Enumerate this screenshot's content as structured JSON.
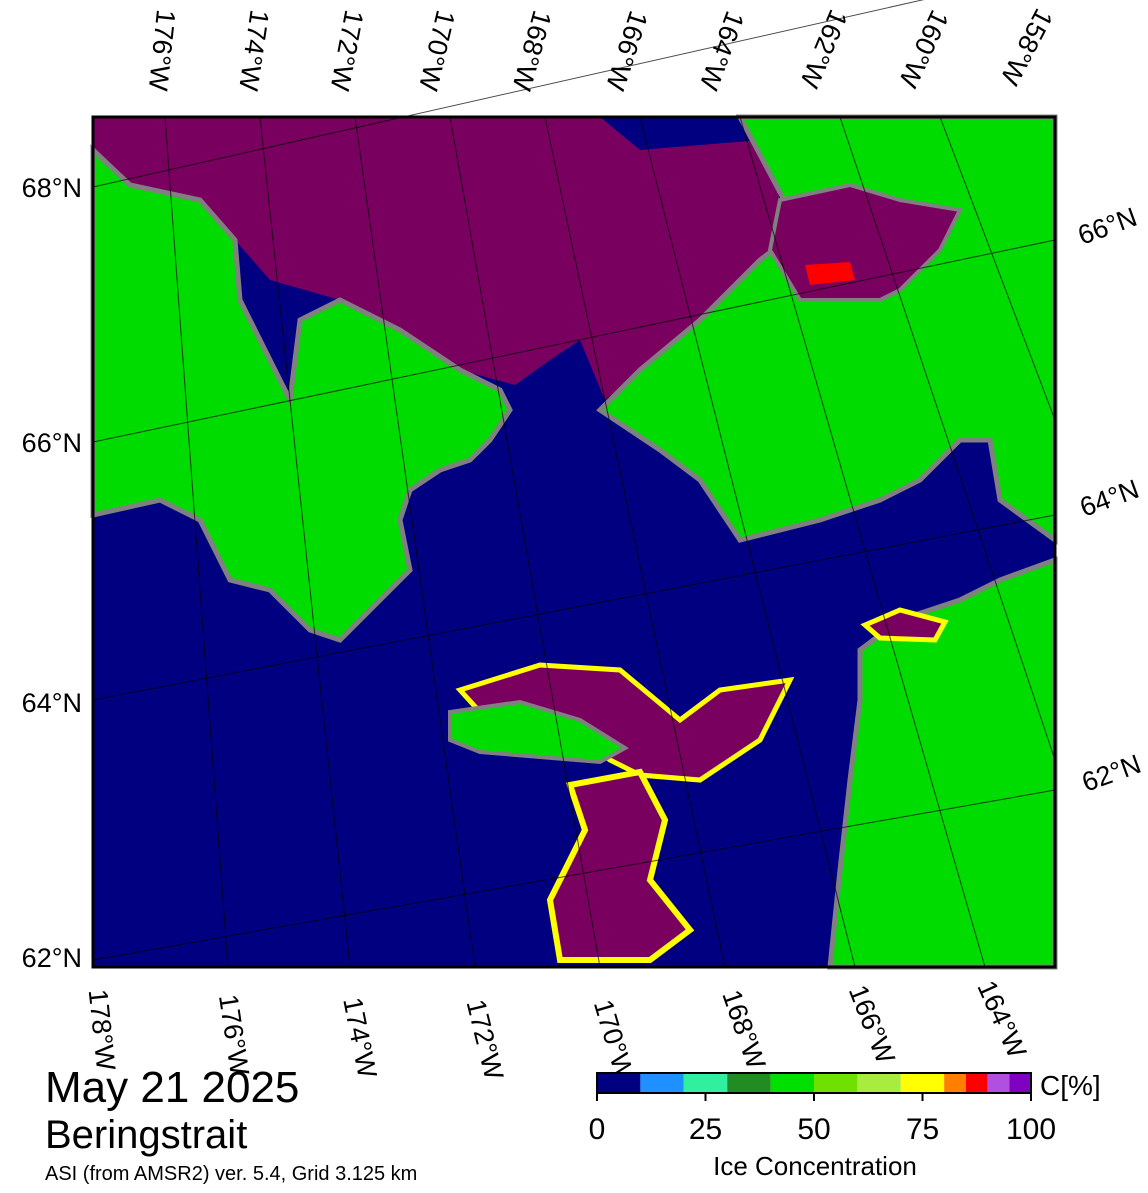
{
  "map": {
    "title_date": "May 21 2025",
    "region": "Beringstrait",
    "subtitle": "ASI (from AMSR2) ver. 5.4,  Grid 3.125 km",
    "top_labels": [
      "176°W",
      "174°W",
      "172°W",
      "170°W",
      "168°W",
      "166°W",
      "164°W",
      "162°W",
      "160°W",
      "158°W"
    ],
    "bottom_labels": [
      "178°W",
      "176°W",
      "174°W",
      "172°W",
      "170°W",
      "168°W",
      "166°W",
      "164°W"
    ],
    "left_labels": [
      "68°N",
      "66°N",
      "64°N",
      "62°N"
    ],
    "right_labels": [
      "66°N",
      "64°N",
      "62°N"
    ]
  },
  "colorbar": {
    "label": "Ice Concentration",
    "unit": "C[%]",
    "bins": [
      0,
      10,
      20,
      30,
      40,
      50,
      60,
      70,
      80,
      85,
      90,
      95,
      100
    ],
    "colors": [
      "#000080",
      "#1e90ff",
      "#30f0a0",
      "#228b22",
      "#00e000",
      "#70e000",
      "#a8ec40",
      "#ffff00",
      "#ff8000",
      "#ff0000",
      "#b050e0",
      "#8000c0"
    ],
    "ticks": [
      0,
      25,
      50,
      75,
      100
    ]
  }
}
